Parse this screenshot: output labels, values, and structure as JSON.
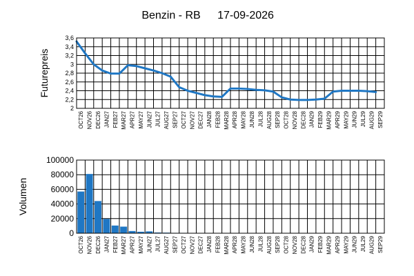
{
  "chart_data": [
    {
      "type": "line",
      "title": "Benzin - RB",
      "date": "17-09-2026",
      "ylabel": "Futurepreis",
      "ylim": [
        2,
        3.6
      ],
      "yticks": [
        "2",
        "2,2",
        "2,4",
        "2,6",
        "2,8",
        "3",
        "3,2",
        "3,4",
        "3,6"
      ],
      "grid": true,
      "categories": [
        "OCT26",
        "NOV26",
        "DEC26",
        "JAN27",
        "FEB27",
        "MAR27",
        "APR27",
        "MAY27",
        "JUN27",
        "JUL27",
        "AUG27",
        "SEP27",
        "OCT27",
        "NOV27",
        "DEC27",
        "JAN28",
        "FEB28",
        "MAR28",
        "APR28",
        "MAY28",
        "JUN28",
        "JUL28",
        "AUG28",
        "SEP28",
        "OCT28",
        "NOV28",
        "DEC28",
        "JAN29",
        "FEB29",
        "MAR29",
        "APR29",
        "MAY29",
        "JUN29",
        "JUL29",
        "AUG29",
        "SEP29"
      ],
      "series": [
        {
          "values": [
            3.52,
            3.25,
            3.0,
            2.86,
            2.79,
            2.79,
            2.98,
            2.96,
            2.91,
            2.86,
            2.8,
            2.72,
            2.48,
            2.4,
            2.35,
            2.3,
            2.27,
            2.26,
            2.45,
            2.45,
            2.44,
            2.42,
            2.41,
            2.38,
            2.25,
            2.2,
            2.19,
            2.19,
            2.2,
            2.22,
            2.38,
            2.4,
            2.4,
            2.4,
            2.39,
            2.37
          ],
          "color": "#1f77c4"
        }
      ]
    },
    {
      "type": "bar",
      "ylabel": "Volumen",
      "ylim": [
        0,
        100000
      ],
      "yticks": [
        "0",
        "20000",
        "40000",
        "60000",
        "80000",
        "100000"
      ],
      "grid": true,
      "categories": [
        "OCT26",
        "NOV26",
        "DEC26",
        "JAN27",
        "FEB27",
        "MAR27",
        "APR27",
        "MAY27",
        "JUN27",
        "JUL27",
        "AUG27",
        "SEP27",
        "OCT27",
        "NOV27",
        "DEC27",
        "JAN28",
        "FEB28",
        "MAR28",
        "APR28",
        "MAY28",
        "JUN28",
        "JUL28",
        "AUG28",
        "SEP28",
        "OCT28",
        "NOV28",
        "DEC28",
        "JAN29",
        "FEB29",
        "MAR29",
        "APR29",
        "MAY29",
        "JUN29",
        "JUL29",
        "AUG29",
        "SEP29"
      ],
      "series": [
        {
          "values": [
            57000,
            81000,
            44000,
            19500,
            10500,
            9000,
            3000,
            2000,
            2500,
            1000,
            800,
            500,
            500,
            400,
            300,
            300,
            200,
            200,
            0,
            0,
            0,
            0,
            0,
            0,
            0,
            0,
            0,
            0,
            0,
            0,
            0,
            0,
            0,
            0,
            0,
            0
          ],
          "color": "#1f77c4"
        }
      ]
    }
  ]
}
